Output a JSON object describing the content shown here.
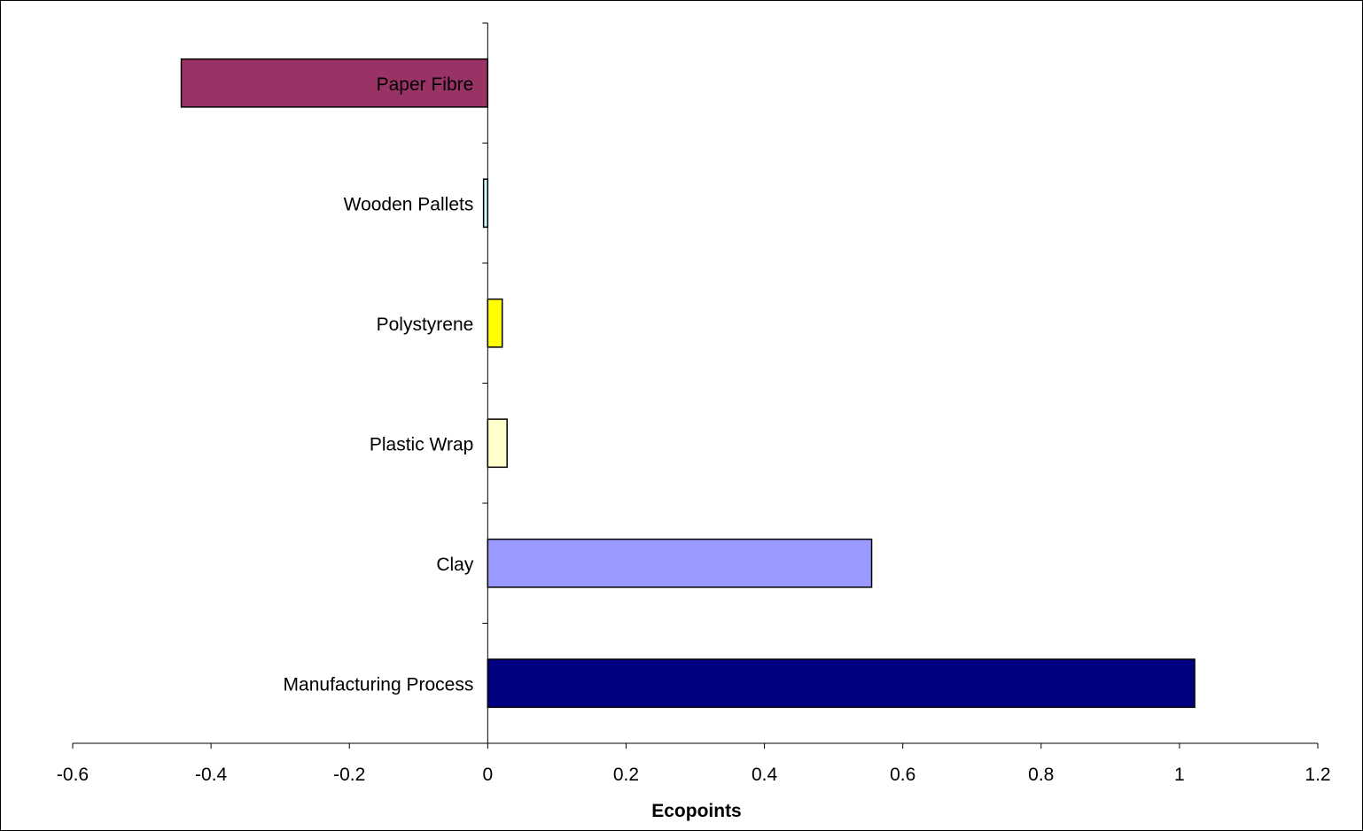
{
  "chart_data": {
    "type": "bar",
    "orientation": "horizontal",
    "categories": [
      "Paper Fibre",
      "Wooden Pallets",
      "Polystyrene",
      "Plastic Wrap",
      "Clay",
      "Manufacturing Process"
    ],
    "values": [
      -0.443,
      -0.006,
      0.021,
      0.028,
      0.555,
      1.022
    ],
    "colors": [
      "#993366",
      "#CCFFFF",
      "#FFFF00",
      "#FFFFCC",
      "#9999FF",
      "#000080"
    ],
    "title": "",
    "xlabel": "Ecopoints",
    "ylabel": "",
    "xlim": [
      -0.6,
      1.2
    ],
    "xticks": [
      "-0.6",
      "-0.4",
      "-0.2",
      "0",
      "0.2",
      "0.4",
      "0.6",
      "0.8",
      "1",
      "1.2"
    ],
    "grid": false,
    "legend": "none"
  }
}
